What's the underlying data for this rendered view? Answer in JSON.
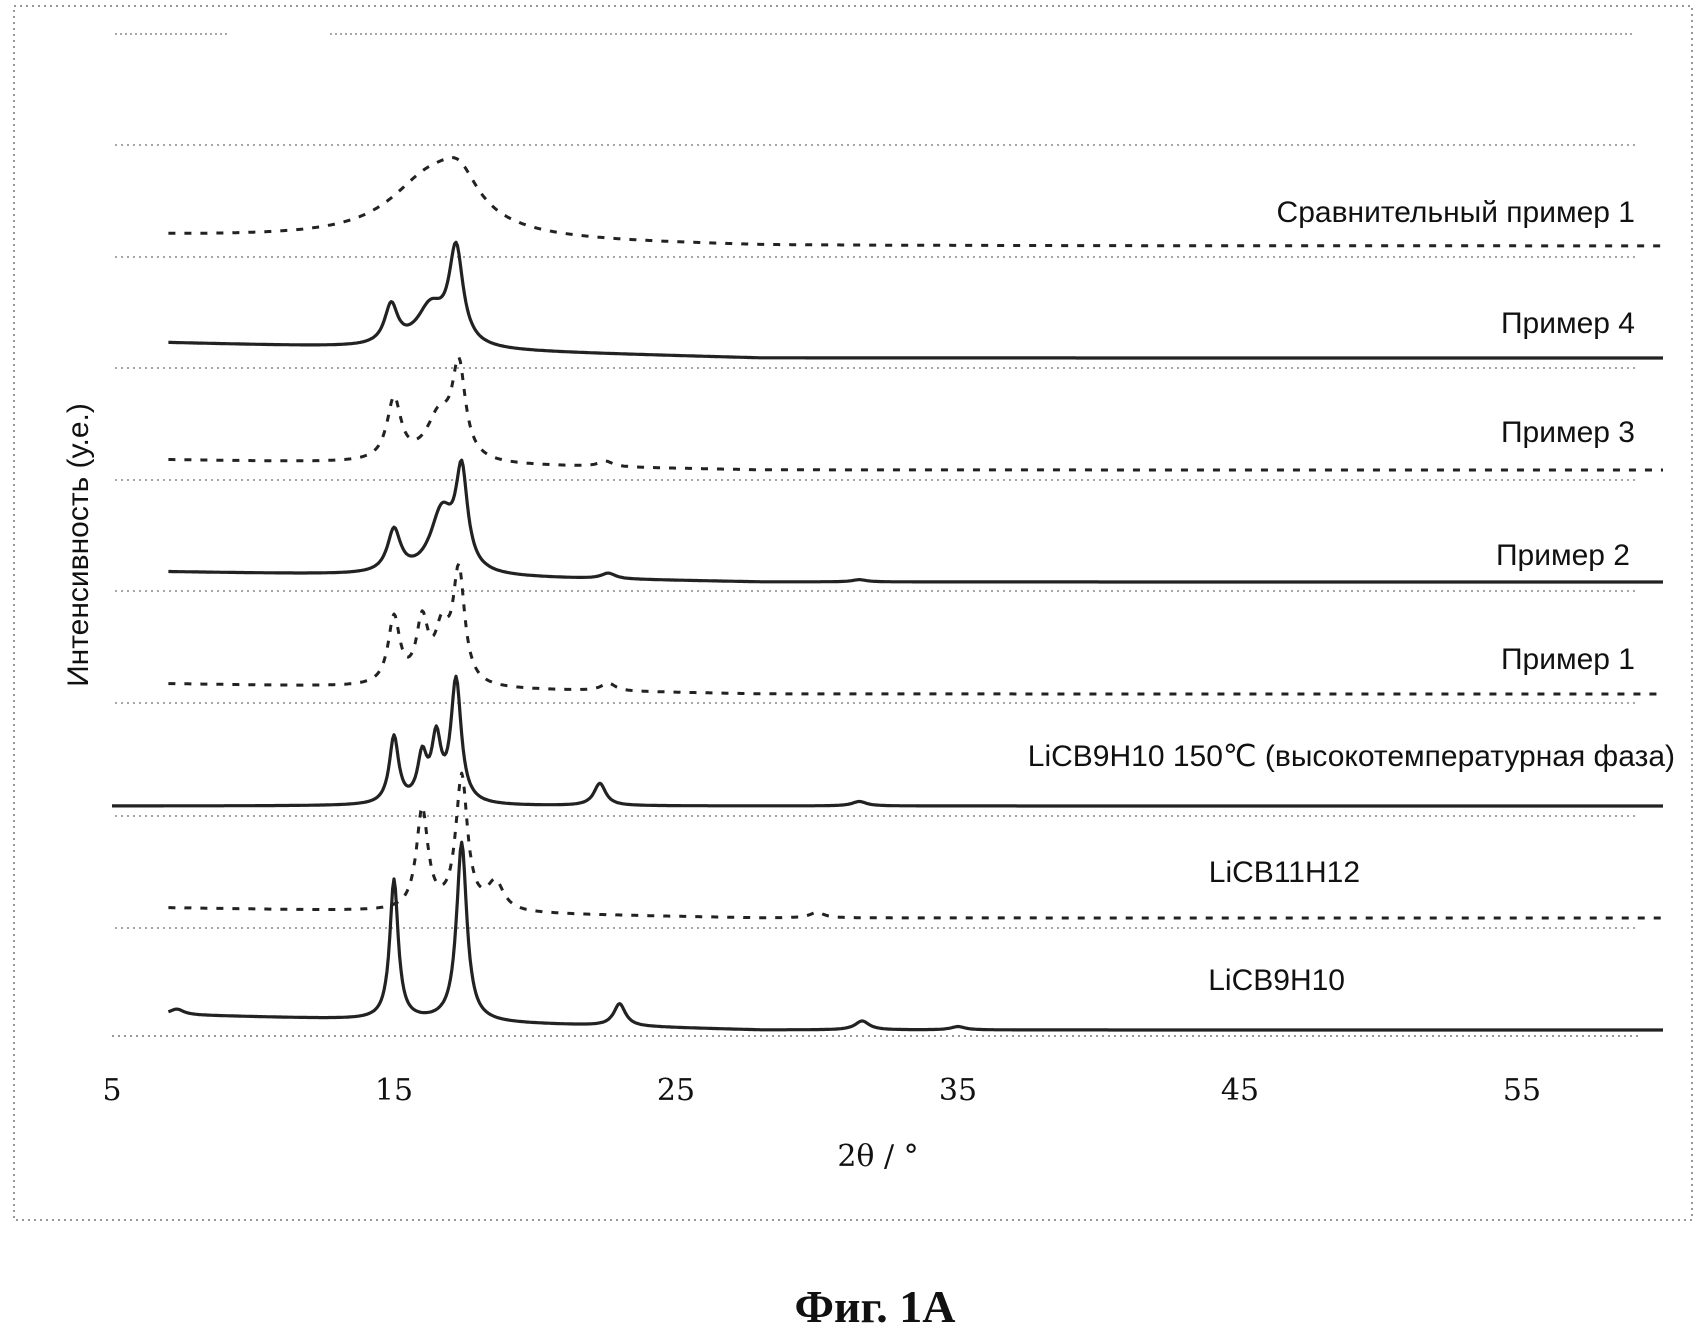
{
  "figure": {
    "caption": "Фиг. 1А"
  },
  "chart_data": {
    "type": "line",
    "xlabel": "2θ / °",
    "ylabel": "Интенсивность (у.е.)",
    "xlim": [
      5,
      60
    ],
    "xticks": [
      5,
      15,
      25,
      35,
      45,
      55
    ],
    "grid": false,
    "legend": "labels placed at right end of each offset trace",
    "series": [
      {
        "name": "Сравнительный пример 1",
        "style": "dashed",
        "offset": 8.0,
        "baseline": 0.1,
        "peaks": [
          {
            "x": 16.3,
            "h": 0.55,
            "w": 1.8
          },
          {
            "x": 17.3,
            "h": 0.3,
            "w": 0.8
          }
        ]
      },
      {
        "name": "Пример 4",
        "style": "solid",
        "offset": 7.0,
        "baseline": 0.15,
        "peaks": [
          {
            "x": 14.9,
            "h": 0.35,
            "w": 0.28
          },
          {
            "x": 16.3,
            "h": 0.35,
            "w": 0.6
          },
          {
            "x": 17.2,
            "h": 0.85,
            "w": 0.3
          }
        ]
      },
      {
        "name": "Пример 3",
        "style": "dashed",
        "offset": 6.0,
        "baseline": 0.1,
        "peaks": [
          {
            "x": 15.0,
            "h": 0.55,
            "w": 0.3
          },
          {
            "x": 16.6,
            "h": 0.4,
            "w": 0.55
          },
          {
            "x": 17.3,
            "h": 0.8,
            "w": 0.28
          },
          {
            "x": 22.5,
            "h": 0.05,
            "w": 0.3
          }
        ]
      },
      {
        "name": "Пример 2",
        "style": "solid",
        "offset": 5.0,
        "baseline": 0.1,
        "peaks": [
          {
            "x": 15.0,
            "h": 0.38,
            "w": 0.28
          },
          {
            "x": 16.7,
            "h": 0.55,
            "w": 0.5
          },
          {
            "x": 17.4,
            "h": 0.85,
            "w": 0.25
          },
          {
            "x": 22.6,
            "h": 0.05,
            "w": 0.3
          },
          {
            "x": 31.5,
            "h": 0.02,
            "w": 0.3
          }
        ]
      },
      {
        "name": "Пример 1",
        "style": "dashed",
        "offset": 4.0,
        "baseline": 0.1,
        "peaks": [
          {
            "x": 15.0,
            "h": 0.6,
            "w": 0.25
          },
          {
            "x": 16.0,
            "h": 0.55,
            "w": 0.25
          },
          {
            "x": 16.7,
            "h": 0.45,
            "w": 0.3
          },
          {
            "x": 17.3,
            "h": 1.0,
            "w": 0.25
          },
          {
            "x": 22.6,
            "h": 0.07,
            "w": 0.3
          }
        ]
      },
      {
        "name": "LiCB9H10 150℃ (высокотемпературная фаза)",
        "style": "solid",
        "offset": 3.0,
        "baseline": 0.0,
        "x_start": 5,
        "peaks": [
          {
            "x": 15.0,
            "h": 0.6,
            "w": 0.2
          },
          {
            "x": 16.0,
            "h": 0.4,
            "w": 0.2
          },
          {
            "x": 16.5,
            "h": 0.55,
            "w": 0.2
          },
          {
            "x": 17.2,
            "h": 1.1,
            "w": 0.22
          },
          {
            "x": 22.3,
            "h": 0.2,
            "w": 0.25
          },
          {
            "x": 31.5,
            "h": 0.04,
            "w": 0.3
          }
        ]
      },
      {
        "name": "LiCB11H12",
        "style": "dashed",
        "offset": 2.0,
        "baseline": 0.1,
        "peaks": [
          {
            "x": 16.0,
            "h": 0.9,
            "w": 0.25
          },
          {
            "x": 17.4,
            "h": 1.2,
            "w": 0.25
          },
          {
            "x": 18.6,
            "h": 0.25,
            "w": 0.35
          },
          {
            "x": 30.0,
            "h": 0.05,
            "w": 0.3
          }
        ]
      },
      {
        "name": "LiCB9H10",
        "style": "solid",
        "offset": 1.0,
        "baseline": 0.15,
        "peaks": [
          {
            "x": 7.3,
            "h": 0.05,
            "w": 0.3
          },
          {
            "x": 15.0,
            "h": 1.25,
            "w": 0.18
          },
          {
            "x": 17.4,
            "h": 1.6,
            "w": 0.22
          },
          {
            "x": 23.0,
            "h": 0.2,
            "w": 0.25
          },
          {
            "x": 31.6,
            "h": 0.08,
            "w": 0.3
          },
          {
            "x": 35.0,
            "h": 0.03,
            "w": 0.3
          }
        ]
      }
    ]
  }
}
